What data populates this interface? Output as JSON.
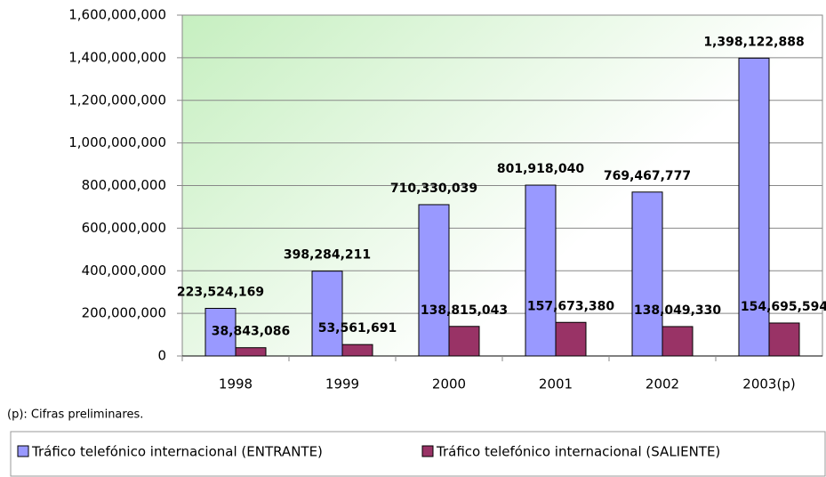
{
  "chart_data": {
    "type": "bar",
    "categories": [
      "1998",
      "1999",
      "2000",
      "2001",
      "2002",
      "2003(p)"
    ],
    "series": [
      {
        "name": "Tráfico telefónico internacional (ENTRANTE)",
        "color": "#9999ff",
        "values": [
          223524169,
          398284211,
          710330039,
          801918040,
          769467777,
          1398122888
        ],
        "value_labels": [
          "223,524,169",
          "398,284,211",
          "710,330,039",
          "801,918,040",
          "769,467,777",
          "1,398,122,888"
        ]
      },
      {
        "name": "Tráfico telefónico internacional (SALIENTE)",
        "color": "#993366",
        "values": [
          38843086,
          53561691,
          138815043,
          157673380,
          138049330,
          154695594
        ],
        "value_labels": [
          "38,843,086",
          "53,561,691",
          "138,815,043",
          "157,673,380",
          "138,049,330",
          "154,695,594"
        ]
      }
    ],
    "ylim": [
      0,
      1600000000
    ],
    "yticks": [
      0,
      {
        "value": 200000000,
        "label": "200,000,000"
      },
      {
        "value": 400000000,
        "label": "400,000,000"
      },
      {
        "value": 600000000,
        "label": "600,000,000"
      },
      {
        "value": 800000000,
        "label": "800,000,000"
      },
      {
        "value": 1000000000,
        "label": "1,000,000,000"
      },
      {
        "value": 1200000000,
        "label": "1,200,000,000"
      },
      {
        "value": 1400000000,
        "label": "1,400,000,000"
      },
      {
        "value": 1600000000,
        "label": "1,600,000,000"
      }
    ],
    "grid": true,
    "legend": "bottom",
    "note": "(p): Cifras preliminares."
  }
}
